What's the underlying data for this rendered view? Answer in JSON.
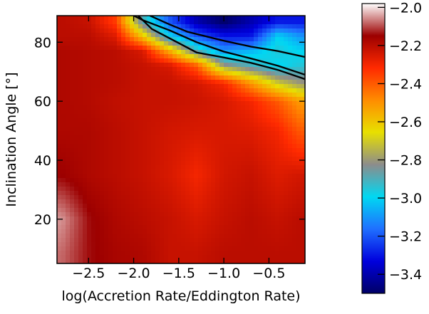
{
  "chart_data": {
    "type": "heatmap",
    "xlabel": "log(Accretion Rate/Eddington Rate)",
    "ylabel": "Inclination Angle [°]",
    "x_ticks": [
      -2.5,
      -2.0,
      -1.5,
      -1.0,
      -0.5
    ],
    "x_tick_labels": [
      "−2.5",
      "−2.0",
      "−1.5",
      "−1.0",
      "−0.5"
    ],
    "y_ticks": [
      20,
      40,
      60,
      80
    ],
    "y_tick_labels": [
      "20",
      "40",
      "60",
      "80"
    ],
    "xlim": [
      -2.85,
      -0.1
    ],
    "ylim": [
      5,
      89
    ],
    "colorbar": {
      "range": [
        -3.5,
        -1.98
      ],
      "ticks": [
        -2.0,
        -2.2,
        -2.4,
        -2.6,
        -2.8,
        -3.0,
        -3.2,
        -3.4
      ],
      "tick_labels": [
        "−2.0",
        "−2.2",
        "−2.4",
        "−2.6",
        "−2.8",
        "−3.0",
        "−3.2",
        "−3.4"
      ],
      "colors": [
        "#000066",
        "#0000dd",
        "#1f6fff",
        "#00d8f2",
        "#8c8c8c",
        "#e8e000",
        "#ff8c00",
        "#ff2a00",
        "#9c0000",
        "#ffffff"
      ]
    },
    "field": {
      "description_free_values": true,
      "x": [
        -2.8,
        -2.5,
        -2.2,
        -1.9,
        -1.6,
        -1.3,
        -1.0,
        -0.7,
        -0.4,
        -0.15
      ],
      "y": [
        8,
        20,
        35,
        50,
        60,
        66,
        72,
        77,
        82,
        87
      ],
      "z": [
        [
          -2.08,
          -2.14,
          -2.17,
          -2.18,
          -2.22,
          -2.22,
          -2.2,
          -2.2,
          -2.2,
          -2.2
        ],
        [
          -2.05,
          -2.14,
          -2.18,
          -2.2,
          -2.22,
          -2.25,
          -2.22,
          -2.2,
          -2.22,
          -2.2
        ],
        [
          -2.15,
          -2.18,
          -2.2,
          -2.22,
          -2.25,
          -2.3,
          -2.24,
          -2.22,
          -2.26,
          -2.24
        ],
        [
          -2.18,
          -2.18,
          -2.2,
          -2.22,
          -2.24,
          -2.25,
          -2.25,
          -2.26,
          -2.3,
          -2.4
        ],
        [
          -2.18,
          -2.19,
          -2.21,
          -2.22,
          -2.22,
          -2.23,
          -2.25,
          -2.3,
          -2.4,
          -2.52
        ],
        [
          -2.18,
          -2.19,
          -2.2,
          -2.22,
          -2.22,
          -2.24,
          -2.3,
          -2.5,
          -2.7,
          -2.8
        ],
        [
          -2.18,
          -2.19,
          -2.2,
          -2.22,
          -2.25,
          -2.4,
          -2.8,
          -2.9,
          -3.0,
          -2.95
        ],
        [
          -2.18,
          -2.19,
          -2.2,
          -2.25,
          -2.55,
          -2.9,
          -3.1,
          -3.05,
          -2.95,
          -3.0
        ],
        [
          -2.2,
          -2.2,
          -2.26,
          -2.6,
          -3.0,
          -3.2,
          -3.3,
          -3.3,
          -3.0,
          -3.1
        ],
        [
          -2.2,
          -2.22,
          -2.35,
          -2.9,
          -3.2,
          -3.4,
          -3.5,
          -3.4,
          -3.3,
          -3.3
        ]
      ]
    },
    "contours": [
      {
        "x": [
          -2.0,
          -1.9,
          -1.6,
          -1.3,
          -1.0,
          -0.7,
          -0.4,
          -0.1
        ],
        "y": [
          89,
          87.5,
          84.0,
          80.0,
          76.8,
          74.5,
          72.0,
          69.0
        ]
      },
      {
        "x": [
          -1.95,
          -1.8,
          -1.55,
          -1.3,
          -1.0,
          -0.7,
          -0.4,
          -0.1
        ],
        "y": [
          89,
          84.5,
          80.5,
          76.5,
          74.8,
          73.0,
          70.6,
          67.5
        ]
      },
      {
        "x": [
          -1.82,
          -1.6,
          -1.4,
          -1.2,
          -1.0,
          -0.7,
          -0.4,
          -0.1
        ],
        "y": [
          89,
          86.0,
          83.5,
          82.0,
          80.5,
          78.5,
          77.0,
          75.0
        ]
      }
    ]
  }
}
